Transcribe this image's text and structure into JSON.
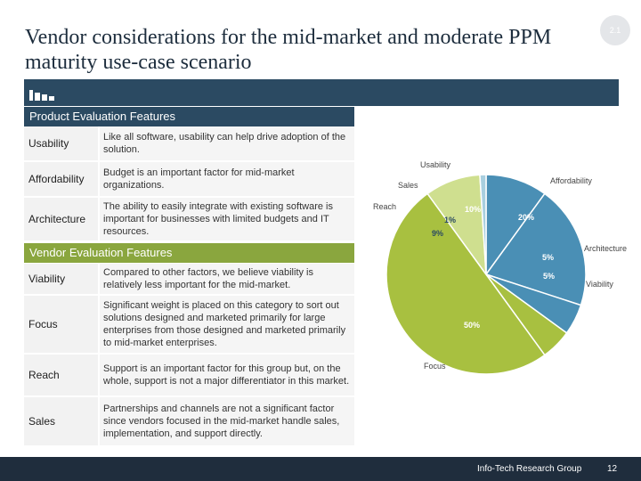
{
  "slide": {
    "title": "Vendor considerations for the mid-market and moderate PPM maturity use-case scenario",
    "badge": "2.1"
  },
  "product_section": {
    "header": "Product Evaluation Features",
    "rows": [
      {
        "label": "Usability",
        "text": "Like all software, usability can help drive adoption of the solution."
      },
      {
        "label": "Affordability",
        "text": "Budget is an important factor for mid-market organizations."
      },
      {
        "label": "Architecture",
        "text": "The ability to easily integrate with existing software is important for businesses with limited budgets and IT resources."
      }
    ]
  },
  "vendor_section": {
    "header": "Vendor Evaluation Features",
    "rows": [
      {
        "label": "Viability",
        "text": "Compared to other factors, we believe viability is relatively less important for the mid-market."
      },
      {
        "label": "Focus",
        "text": "Significant weight is placed on this category to sort out solutions designed and marketed primarily for large enterprises from those designed and marketed primarily to mid-market enterprises."
      },
      {
        "label": "Reach",
        "text": "Support is an important factor for this group but, on the whole, support is not a major differentiator in this market."
      },
      {
        "label": "Sales",
        "text": "Partnerships and channels are not a significant factor since vendors focused in the mid-market handle sales, implementation, and support directly."
      }
    ]
  },
  "chart_data": {
    "type": "pie",
    "title": "",
    "slices": [
      {
        "name": "Usability",
        "value": 10,
        "label": "10%",
        "color": "#4a8fb5"
      },
      {
        "name": "Affordability",
        "value": 20,
        "label": "20%",
        "color": "#4a8fb5"
      },
      {
        "name": "Architecture",
        "value": 5,
        "label": "5%",
        "color": "#4a8fb5"
      },
      {
        "name": "Viability",
        "value": 5,
        "label": "5%",
        "color": "#a8c040"
      },
      {
        "name": "Focus",
        "value": 50,
        "label": "50%",
        "color": "#a8c040"
      },
      {
        "name": "Reach",
        "value": 9,
        "label": "9%",
        "color": "#cfdf8f"
      },
      {
        "name": "Sales",
        "value": 1,
        "label": "1%",
        "color": "#a9cfdf"
      }
    ]
  },
  "footer": {
    "org": "Info-Tech Research Group",
    "page": "12"
  }
}
